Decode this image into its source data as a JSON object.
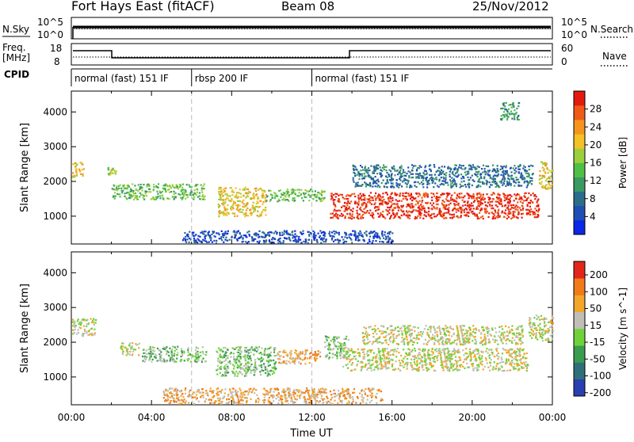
{
  "header": {
    "station": "Fort Hays East (fitACF)",
    "beam": "Beam 08",
    "date": "25/Nov/2012"
  },
  "left_labels": {
    "nsky": "N.Sky",
    "freq_line1": "Freq.",
    "freq_line2": "[MHz]",
    "cpid": "CPID"
  },
  "right_labels": {
    "nsearch": "N.Search",
    "nave": "Nave"
  },
  "aux_ticks": {
    "nsky_left": [
      "10^5",
      "10^0"
    ],
    "nsearch_right": [
      "10^5",
      "10^0"
    ],
    "freq_left": [
      "18",
      "8"
    ],
    "nave_right": [
      "60",
      "0"
    ]
  },
  "cpid_segments": [
    {
      "label": "normal (fast) 151 IF",
      "start_hour": 0,
      "end_hour": 6
    },
    {
      "label": "rbsp 200 IF",
      "start_hour": 6,
      "end_hour": 12
    },
    {
      "label": "normal (fast) 151 IF",
      "start_hour": 12,
      "end_hour": 24
    }
  ],
  "chart_data": [
    {
      "type": "heatmap",
      "panel": "power",
      "ylabel": "Slant Range [km]",
      "xlabel": "Time UT",
      "xlim": [
        0,
        24
      ],
      "ylim": [
        200,
        4600
      ],
      "y_ticks": [
        1000,
        2000,
        3000,
        4000
      ],
      "colorbar": {
        "label": "Power [dB]",
        "ticks": [
          "4",
          "8",
          "12",
          "16",
          "20",
          "24",
          "28"
        ],
        "colors": [
          "#0a28e6",
          "#1f4fb4",
          "#2b6e8a",
          "#3b9a62",
          "#4fc046",
          "#9ccf3e",
          "#f2c227",
          "#f5951e",
          "#f05a18",
          "#e31a10"
        ]
      },
      "regions": [
        {
          "t0": 0.0,
          "t1": 0.6,
          "r0": 2150,
          "r1": 2600,
          "level": 6
        },
        {
          "t0": 1.8,
          "t1": 2.2,
          "r0": 2200,
          "r1": 2450,
          "level": 5
        },
        {
          "t0": 2.0,
          "t1": 6.7,
          "r0": 1500,
          "r1": 1950,
          "level": 4
        },
        {
          "t0": 7.3,
          "t1": 9.7,
          "r0": 1000,
          "r1": 1850,
          "level": 6
        },
        {
          "t0": 9.7,
          "t1": 12.6,
          "r0": 1450,
          "r1": 1800,
          "level": 4
        },
        {
          "t0": 12.9,
          "t1": 23.3,
          "r0": 950,
          "r1": 1700,
          "level": 9
        },
        {
          "t0": 14.0,
          "t1": 23.0,
          "r0": 1850,
          "r1": 2500,
          "level": 2
        },
        {
          "t0": 21.3,
          "t1": 22.3,
          "r0": 3800,
          "r1": 4300,
          "level": 3
        },
        {
          "t0": 23.3,
          "t1": 24.0,
          "r0": 1800,
          "r1": 2600,
          "level": 6
        },
        {
          "t0": 5.5,
          "t1": 16.0,
          "r0": 250,
          "r1": 600,
          "level": 1
        }
      ]
    },
    {
      "type": "heatmap",
      "panel": "velocity",
      "ylabel": "Slant Range [km]",
      "xlabel": "Time UT",
      "xlim": [
        0,
        24
      ],
      "ylim": [
        200,
        4600
      ],
      "y_ticks": [
        1000,
        2000,
        3000,
        4000
      ],
      "x_ticks": [
        "00:00",
        "04:00",
        "08:00",
        "12:00",
        "16:00",
        "20:00",
        "00:00"
      ],
      "colorbar": {
        "label": "Velocity [m s^-1]",
        "ticks": [
          "200",
          "100",
          "50",
          "15",
          "-15",
          "-50",
          "-100",
          "-200"
        ],
        "colors": [
          "#2a3fb0",
          "#2f6f7a",
          "#3a9c4f",
          "#6fd23a",
          "#bfbfb8",
          "#f2a72b",
          "#f27a1a",
          "#e3261b"
        ]
      },
      "regions": [
        {
          "t0": 0.0,
          "t1": 1.2,
          "r0": 2200,
          "r1": 2700,
          "level": 4
        },
        {
          "t0": 2.4,
          "t1": 3.4,
          "r0": 1650,
          "r1": 2000,
          "level": 4
        },
        {
          "t0": 3.5,
          "t1": 6.7,
          "r0": 1450,
          "r1": 1900,
          "level": 3
        },
        {
          "t0": 7.2,
          "t1": 10.2,
          "r0": 1050,
          "r1": 1900,
          "level": 3
        },
        {
          "t0": 10.2,
          "t1": 12.4,
          "r0": 1400,
          "r1": 1800,
          "level": 5
        },
        {
          "t0": 12.6,
          "t1": 13.8,
          "r0": 1550,
          "r1": 2200,
          "level": 3
        },
        {
          "t0": 13.5,
          "t1": 22.8,
          "r0": 1200,
          "r1": 1850,
          "level": 4
        },
        {
          "t0": 14.5,
          "t1": 22.5,
          "r0": 1950,
          "r1": 2500,
          "level": 4
        },
        {
          "t0": 22.8,
          "t1": 24.0,
          "r0": 2050,
          "r1": 2800,
          "level": 4
        },
        {
          "t0": 4.5,
          "t1": 15.5,
          "r0": 250,
          "r1": 700,
          "level": 5
        }
      ]
    }
  ]
}
